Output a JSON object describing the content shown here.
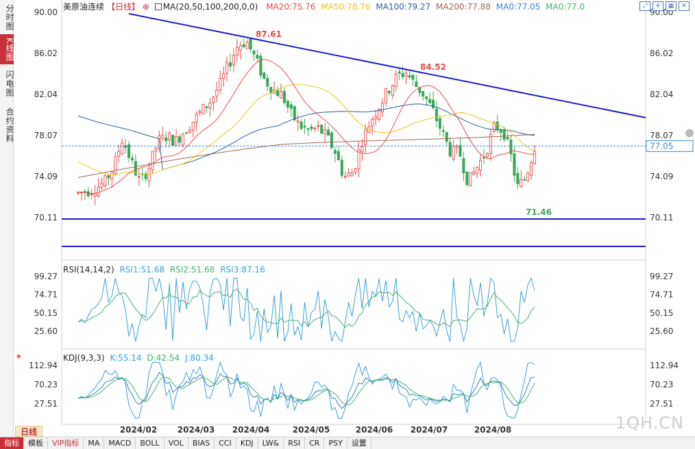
{
  "left_tabs": [
    {
      "label": "分时图",
      "active": false
    },
    {
      "label": "K线图",
      "active": true
    },
    {
      "label": "闪电图",
      "active": false
    },
    {
      "label": "合约资料",
      "active": false
    }
  ],
  "main": {
    "instrument": "美原油连续",
    "period_badge": "【日线】",
    "ma_params": "MA(20,50,100,200,0,0)",
    "ma_values": [
      {
        "label": "MA20:75.76",
        "color": "#e84a4a"
      },
      {
        "label": "MA50:78.76",
        "color": "#f0c419"
      },
      {
        "label": "MA100:79.27",
        "color": "#2c5e9e"
      },
      {
        "label": "MA200:77.88",
        "color": "#9b6a4f"
      },
      {
        "label": "MA0:77.05",
        "color": "#3a86d8"
      },
      {
        "label": "MA0:77.0",
        "color": "#44b06a"
      }
    ],
    "y_ticks": [
      "90.00",
      "86.02",
      "82.04",
      "78.07",
      "74.09",
      "70.11"
    ],
    "current_price": "77.05",
    "high_label": "87.61",
    "mid_high_label": "84.52",
    "low_label": "71.46"
  },
  "rsi": {
    "title": "RSI(14,14,2)",
    "values": [
      {
        "label": "RSI1:51.68",
        "color": "#3aa0d8"
      },
      {
        "label": "RSI2:51.68",
        "color": "#44b06a"
      },
      {
        "label": "RSI3:87.16",
        "color": "#3aa0d8"
      }
    ],
    "y_ticks": [
      "99.27",
      "74.71",
      "50.15",
      "25.60"
    ]
  },
  "kdj": {
    "title": "KDJ(9,3,3)",
    "values": [
      {
        "label": "K:55.14",
        "color": "#3aa0d8"
      },
      {
        "label": "D:42.54",
        "color": "#44b06a"
      },
      {
        "label": "J:80.34",
        "color": "#3aa0d8"
      }
    ],
    "y_ticks": [
      "112.94",
      "70.23",
      "27.51"
    ]
  },
  "x_labels": [
    "2024/02",
    "2024/03",
    "2024/04",
    "2024/05",
    "2024/06",
    "2024/07",
    "2024/08"
  ],
  "period_label": "日线",
  "bottom_tabs": [
    {
      "label": "指标",
      "style": "active"
    },
    {
      "label": "模板",
      "style": ""
    },
    {
      "label": "VIP指标",
      "style": "vip"
    },
    {
      "label": "MA",
      "style": ""
    },
    {
      "label": "MACD",
      "style": ""
    },
    {
      "label": "BOLL",
      "style": ""
    },
    {
      "label": "VOL",
      "style": ""
    },
    {
      "label": "BIAS",
      "style": ""
    },
    {
      "label": "CCI",
      "style": ""
    },
    {
      "label": "KDJ",
      "style": ""
    },
    {
      "label": "LW&",
      "style": ""
    },
    {
      "label": "RSI",
      "style": ""
    },
    {
      "label": "CR",
      "style": ""
    },
    {
      "label": "PSY",
      "style": ""
    },
    {
      "label": "设置",
      "style": ""
    }
  ],
  "toolbar_icons": [
    "expand-icon",
    "crosshair-icon",
    "grid-icon",
    "close-icon"
  ],
  "watermark": "1QH.CN",
  "colors": {
    "up": "#e84a4a",
    "down": "#3aa85a",
    "trendline": "#1a1ac8",
    "support": "#1a1ac8",
    "current_price": "#3a86d8"
  }
}
